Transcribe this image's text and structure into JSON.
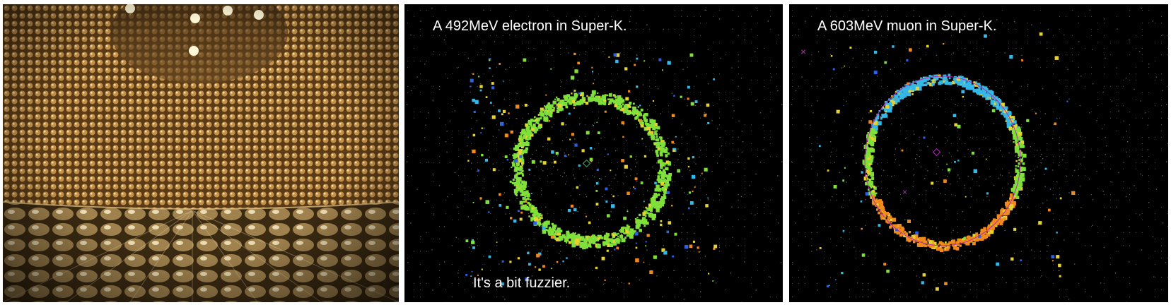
{
  "panels": {
    "tank": {
      "image": "super-kamiokande-detector-interior-photo"
    },
    "electron": {
      "title": "A 492MeV electron in Super-K.",
      "note": "It's a bit fuzzier."
    },
    "muon": {
      "title": "A 603MeV muon in Super-K."
    }
  },
  "colors": {
    "tank_gold": "#b9884a",
    "background": "#000000",
    "ring_green": "#7fe03a",
    "ring_cyan": "#35b8e8",
    "ring_orange": "#f08a1c",
    "fit_marker": "#b32fb3"
  }
}
